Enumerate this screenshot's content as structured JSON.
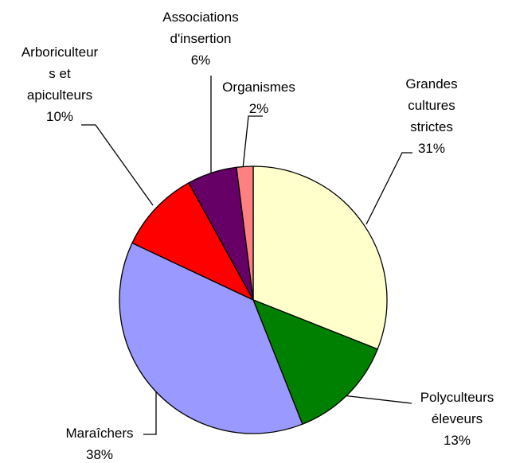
{
  "chart_data": {
    "type": "pie",
    "categories": [
      "Grandes\ncultures\nstrictes",
      "Polyculteurs\néleveurs",
      "Maraîchers",
      "Arboriculteur\ns et\napiculteurs",
      "Associations\nd'insertion",
      "Organismes"
    ],
    "values": [
      31,
      13,
      38,
      10,
      6,
      2
    ],
    "value_labels": [
      "31%",
      "13%",
      "38%",
      "10%",
      "6%",
      "2%"
    ],
    "colors": [
      "#ffffcc",
      "#008000",
      "#9999ff",
      "#ff0000",
      "#660066",
      "#ff8080"
    ]
  }
}
